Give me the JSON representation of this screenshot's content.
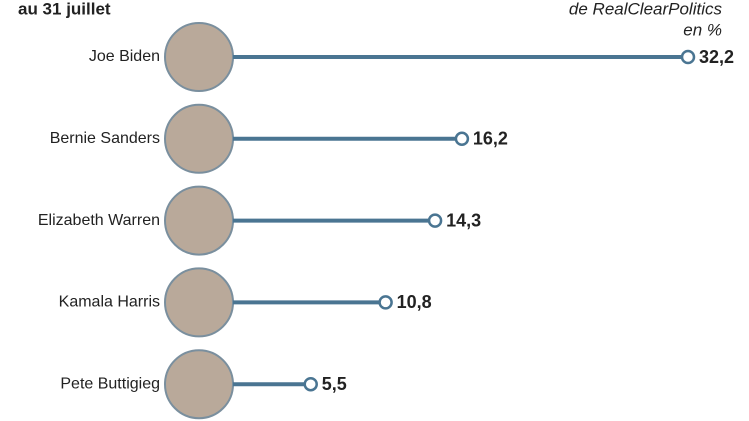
{
  "chart_data": {
    "type": "lollipop",
    "title": "au 31 juillet",
    "subtitle": "de RealClearPolitics",
    "unit_label": "en %",
    "categories": [
      "Joe Biden",
      "Bernie Sanders",
      "Elizabeth Warren",
      "Kamala Harris",
      "Pete Buttigieg"
    ],
    "values": [
      32.2,
      16.2,
      14.3,
      10.8,
      5.5
    ],
    "value_labels": [
      "32,2",
      "16,2",
      "14,3",
      "10,8",
      "5,5"
    ],
    "color": "#4a7592"
  }
}
